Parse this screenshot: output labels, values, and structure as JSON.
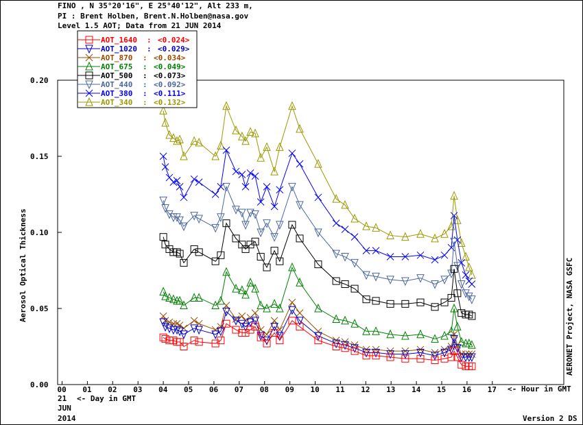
{
  "header": {
    "line1": "FINO , N 35°20'16\", E 25°40'12\", Alt 233 m,",
    "line2": "PI : Brent Holben, Brent.N.Holben@nasa.gov",
    "line3": "Level 1.5 AOT; Data from 21 JUN 2014"
  },
  "footer": {
    "day": "21",
    "day_label": "<- Day in GMT",
    "month": "JUN",
    "year": "2014",
    "hour_label": "<- Hour in GMT",
    "credit": "AERONET Project, NASA GSFC",
    "version": "Version 2 DS"
  },
  "chart_data": {
    "type": "line",
    "title": "Level 1.5 AOT; Data from 21 JUN 2014",
    "xlabel": "Hour in GMT",
    "ylabel": "Aerosol Optical Thickness",
    "xlim": [
      0,
      17
    ],
    "ylim": [
      0,
      0.2
    ],
    "x_ticks": [
      "00",
      "01",
      "02",
      "03",
      "04",
      "05",
      "06",
      "07",
      "08",
      "09",
      "10",
      "11",
      "12",
      "13",
      "14",
      "15",
      "16",
      "17"
    ],
    "y_ticks": [
      "0.00",
      "0.05",
      "0.10",
      "0.15",
      "0.20"
    ],
    "legend_position": "top-left",
    "x": [
      4.0,
      4.08,
      4.24,
      4.4,
      4.54,
      4.65,
      4.81,
      5.22,
      5.41,
      6.06,
      6.27,
      6.49,
      6.87,
      7.11,
      7.25,
      7.44,
      7.63,
      7.85,
      8.09,
      8.39,
      8.6,
      9.09,
      9.39,
      10.12,
      10.83,
      11.18,
      11.56,
      12.02,
      12.4,
      12.97,
      13.56,
      14.16,
      14.73,
      15.11,
      15.38,
      15.49,
      15.62,
      15.78,
      15.95,
      16.08,
      16.19
    ],
    "series": [
      {
        "name": "AOT_1640",
        "mean": "<0.024>",
        "color": "#ff0000",
        "marker": "square",
        "values": [
          0.031,
          0.03,
          0.029,
          0.029,
          0.028,
          0.028,
          0.025,
          0.029,
          0.028,
          0.027,
          0.029,
          0.04,
          0.036,
          0.034,
          0.034,
          0.036,
          0.038,
          0.031,
          0.027,
          0.034,
          0.029,
          0.042,
          0.038,
          0.029,
          0.025,
          0.024,
          0.022,
          0.019,
          0.019,
          0.018,
          0.017,
          0.017,
          0.016,
          0.017,
          0.018,
          0.022,
          0.018,
          0.013,
          0.012,
          0.012,
          0.012
        ]
      },
      {
        "name": "AOT_1020",
        "mean": "<0.029>",
        "color": "#0000cc",
        "marker": "tri-down",
        "values": [
          0.041,
          0.038,
          0.037,
          0.036,
          0.036,
          0.035,
          0.033,
          0.037,
          0.036,
          0.033,
          0.035,
          0.048,
          0.042,
          0.04,
          0.038,
          0.041,
          0.042,
          0.032,
          0.029,
          0.038,
          0.032,
          0.049,
          0.042,
          0.032,
          0.027,
          0.026,
          0.024,
          0.021,
          0.021,
          0.02,
          0.02,
          0.021,
          0.019,
          0.021,
          0.023,
          0.03,
          0.024,
          0.018,
          0.018,
          0.018,
          0.018
        ]
      },
      {
        "name": "AOT_870",
        "mean": "<0.034>",
        "color": "#994c00",
        "marker": "cross",
        "values": [
          0.045,
          0.042,
          0.041,
          0.04,
          0.04,
          0.039,
          0.037,
          0.042,
          0.04,
          0.036,
          0.038,
          0.052,
          0.043,
          0.045,
          0.042,
          0.044,
          0.047,
          0.036,
          0.033,
          0.042,
          0.036,
          0.054,
          0.047,
          0.035,
          0.029,
          0.028,
          0.026,
          0.023,
          0.023,
          0.022,
          0.022,
          0.023,
          0.021,
          0.023,
          0.025,
          0.033,
          0.026,
          0.02,
          0.02,
          0.02,
          0.02
        ]
      },
      {
        "name": "AOT_675",
        "mean": "<0.049>",
        "color": "#008000",
        "marker": "tri-up",
        "values": [
          0.061,
          0.058,
          0.057,
          0.056,
          0.055,
          0.055,
          0.052,
          0.057,
          0.057,
          0.052,
          0.055,
          0.074,
          0.063,
          0.062,
          0.059,
          0.067,
          0.063,
          0.052,
          0.05,
          0.053,
          0.05,
          0.077,
          0.067,
          0.05,
          0.043,
          0.042,
          0.04,
          0.035,
          0.035,
          0.033,
          0.032,
          0.033,
          0.03,
          0.032,
          0.035,
          0.05,
          0.038,
          0.028,
          0.027,
          0.027,
          0.026
        ]
      },
      {
        "name": "AOT_500",
        "mean": "<0.073>",
        "color": "#000000",
        "marker": "square",
        "values": [
          0.097,
          0.092,
          0.089,
          0.087,
          0.087,
          0.086,
          0.08,
          0.089,
          0.087,
          0.081,
          0.085,
          0.106,
          0.096,
          0.092,
          0.089,
          0.092,
          0.094,
          0.084,
          0.077,
          0.088,
          0.081,
          0.105,
          0.096,
          0.079,
          0.068,
          0.066,
          0.063,
          0.056,
          0.055,
          0.053,
          0.053,
          0.054,
          0.051,
          0.054,
          0.057,
          0.076,
          0.06,
          0.047,
          0.046,
          0.046,
          0.045
        ]
      },
      {
        "name": "AOT_440",
        "mean": "<0.092>",
        "color": "#4a66a0",
        "marker": "tri-down",
        "values": [
          0.121,
          0.116,
          0.112,
          0.11,
          0.11,
          0.108,
          0.104,
          0.111,
          0.109,
          0.103,
          0.11,
          0.13,
          0.115,
          0.113,
          0.105,
          0.113,
          0.112,
          0.1,
          0.106,
          0.097,
          0.105,
          0.13,
          0.118,
          0.1,
          0.086,
          0.084,
          0.08,
          0.072,
          0.071,
          0.069,
          0.068,
          0.07,
          0.066,
          0.069,
          0.073,
          0.094,
          0.078,
          0.066,
          0.06,
          0.058,
          0.056
        ]
      },
      {
        "name": "AOT_380",
        "mean": "<0.111>",
        "color": "#0000ff",
        "marker": "cross",
        "values": [
          0.15,
          0.143,
          0.136,
          0.133,
          0.134,
          0.13,
          0.123,
          0.135,
          0.133,
          0.125,
          0.13,
          0.154,
          0.14,
          0.138,
          0.13,
          0.139,
          0.137,
          0.12,
          0.13,
          0.117,
          0.128,
          0.152,
          0.145,
          0.123,
          0.106,
          0.102,
          0.097,
          0.088,
          0.088,
          0.084,
          0.084,
          0.085,
          0.082,
          0.085,
          0.09,
          0.111,
          0.095,
          0.08,
          0.072,
          0.068,
          0.066
        ]
      },
      {
        "name": "AOT_340",
        "mean": "<0.132>",
        "color": "#999900",
        "marker": "tri-up",
        "values": [
          0.18,
          0.172,
          0.164,
          0.162,
          0.16,
          0.161,
          0.15,
          0.16,
          0.159,
          0.15,
          0.157,
          0.183,
          0.167,
          0.163,
          0.16,
          0.166,
          0.165,
          0.149,
          0.156,
          0.14,
          0.156,
          0.183,
          0.168,
          0.145,
          0.122,
          0.118,
          0.109,
          0.104,
          0.103,
          0.098,
          0.097,
          0.099,
          0.096,
          0.099,
          0.104,
          0.124,
          0.108,
          0.093,
          0.084,
          0.077,
          0.072
        ]
      }
    ]
  }
}
